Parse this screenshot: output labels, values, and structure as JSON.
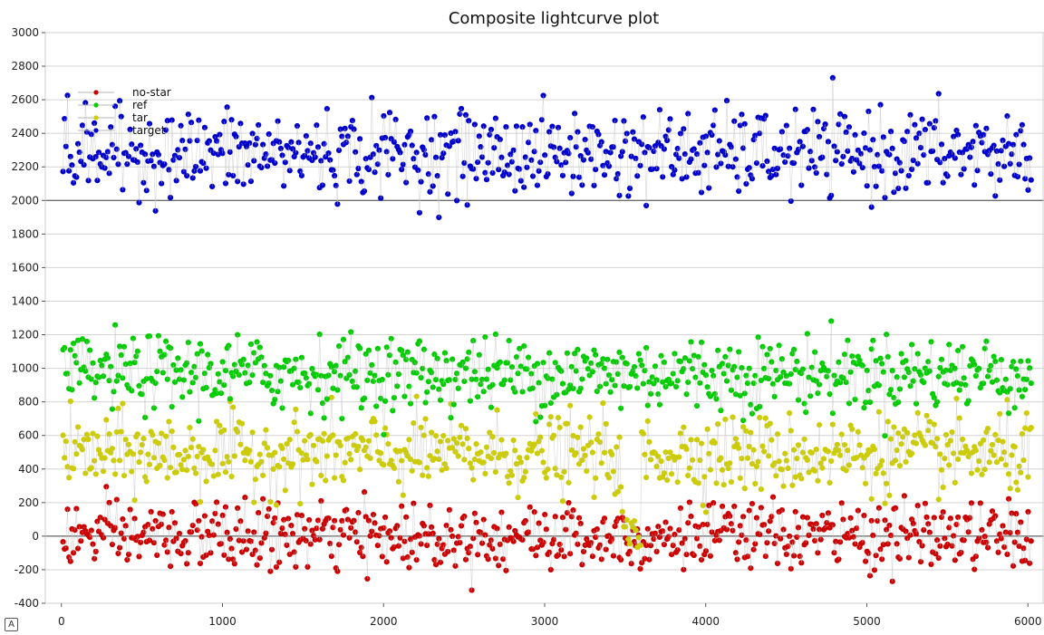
{
  "chart_data": {
    "type": "scatter",
    "title": "Composite lightcurve plot",
    "xlabel": "",
    "ylabel": "",
    "xlim": [
      -100,
      6100
    ],
    "ylim": [
      -400,
      3000
    ],
    "x_ticks": [
      0,
      1000,
      2000,
      3000,
      4000,
      5000,
      6000
    ],
    "y_ticks": [
      -400,
      -200,
      0,
      200,
      400,
      600,
      800,
      1000,
      1200,
      1400,
      1600,
      1800,
      2000,
      2200,
      2400,
      2600,
      2800,
      3000
    ],
    "x_tick_labels": [
      "0",
      "1000",
      "2000",
      "3000",
      "4000",
      "5000",
      "6000"
    ],
    "y_tick_labels": [
      "-400",
      "-200",
      "0",
      "200",
      "400",
      "600",
      "800",
      "1000",
      "1200",
      "1400",
      "1600",
      "1800",
      "2000",
      "2200",
      "2400",
      "2600",
      "2800",
      "3000"
    ],
    "reference_lines_y": [
      0,
      2000
    ],
    "grid": true,
    "legend_position": "top-left",
    "x_range": [
      10,
      6020
    ],
    "gap_x_range": [
      3480,
      3600
    ],
    "series": [
      {
        "name": "no-star",
        "color": "#cc0000",
        "center": 0,
        "spread": 180
      },
      {
        "name": "ref",
        "color": "#00cc00",
        "center": 970,
        "spread": 200
      },
      {
        "name": "tar",
        "color": "#cccc00",
        "center": 490,
        "spread": 210
      },
      {
        "name": "target",
        "color": "#0000cc",
        "center": 2280,
        "spread": 230
      }
    ]
  },
  "badge": {
    "label": "A"
  }
}
